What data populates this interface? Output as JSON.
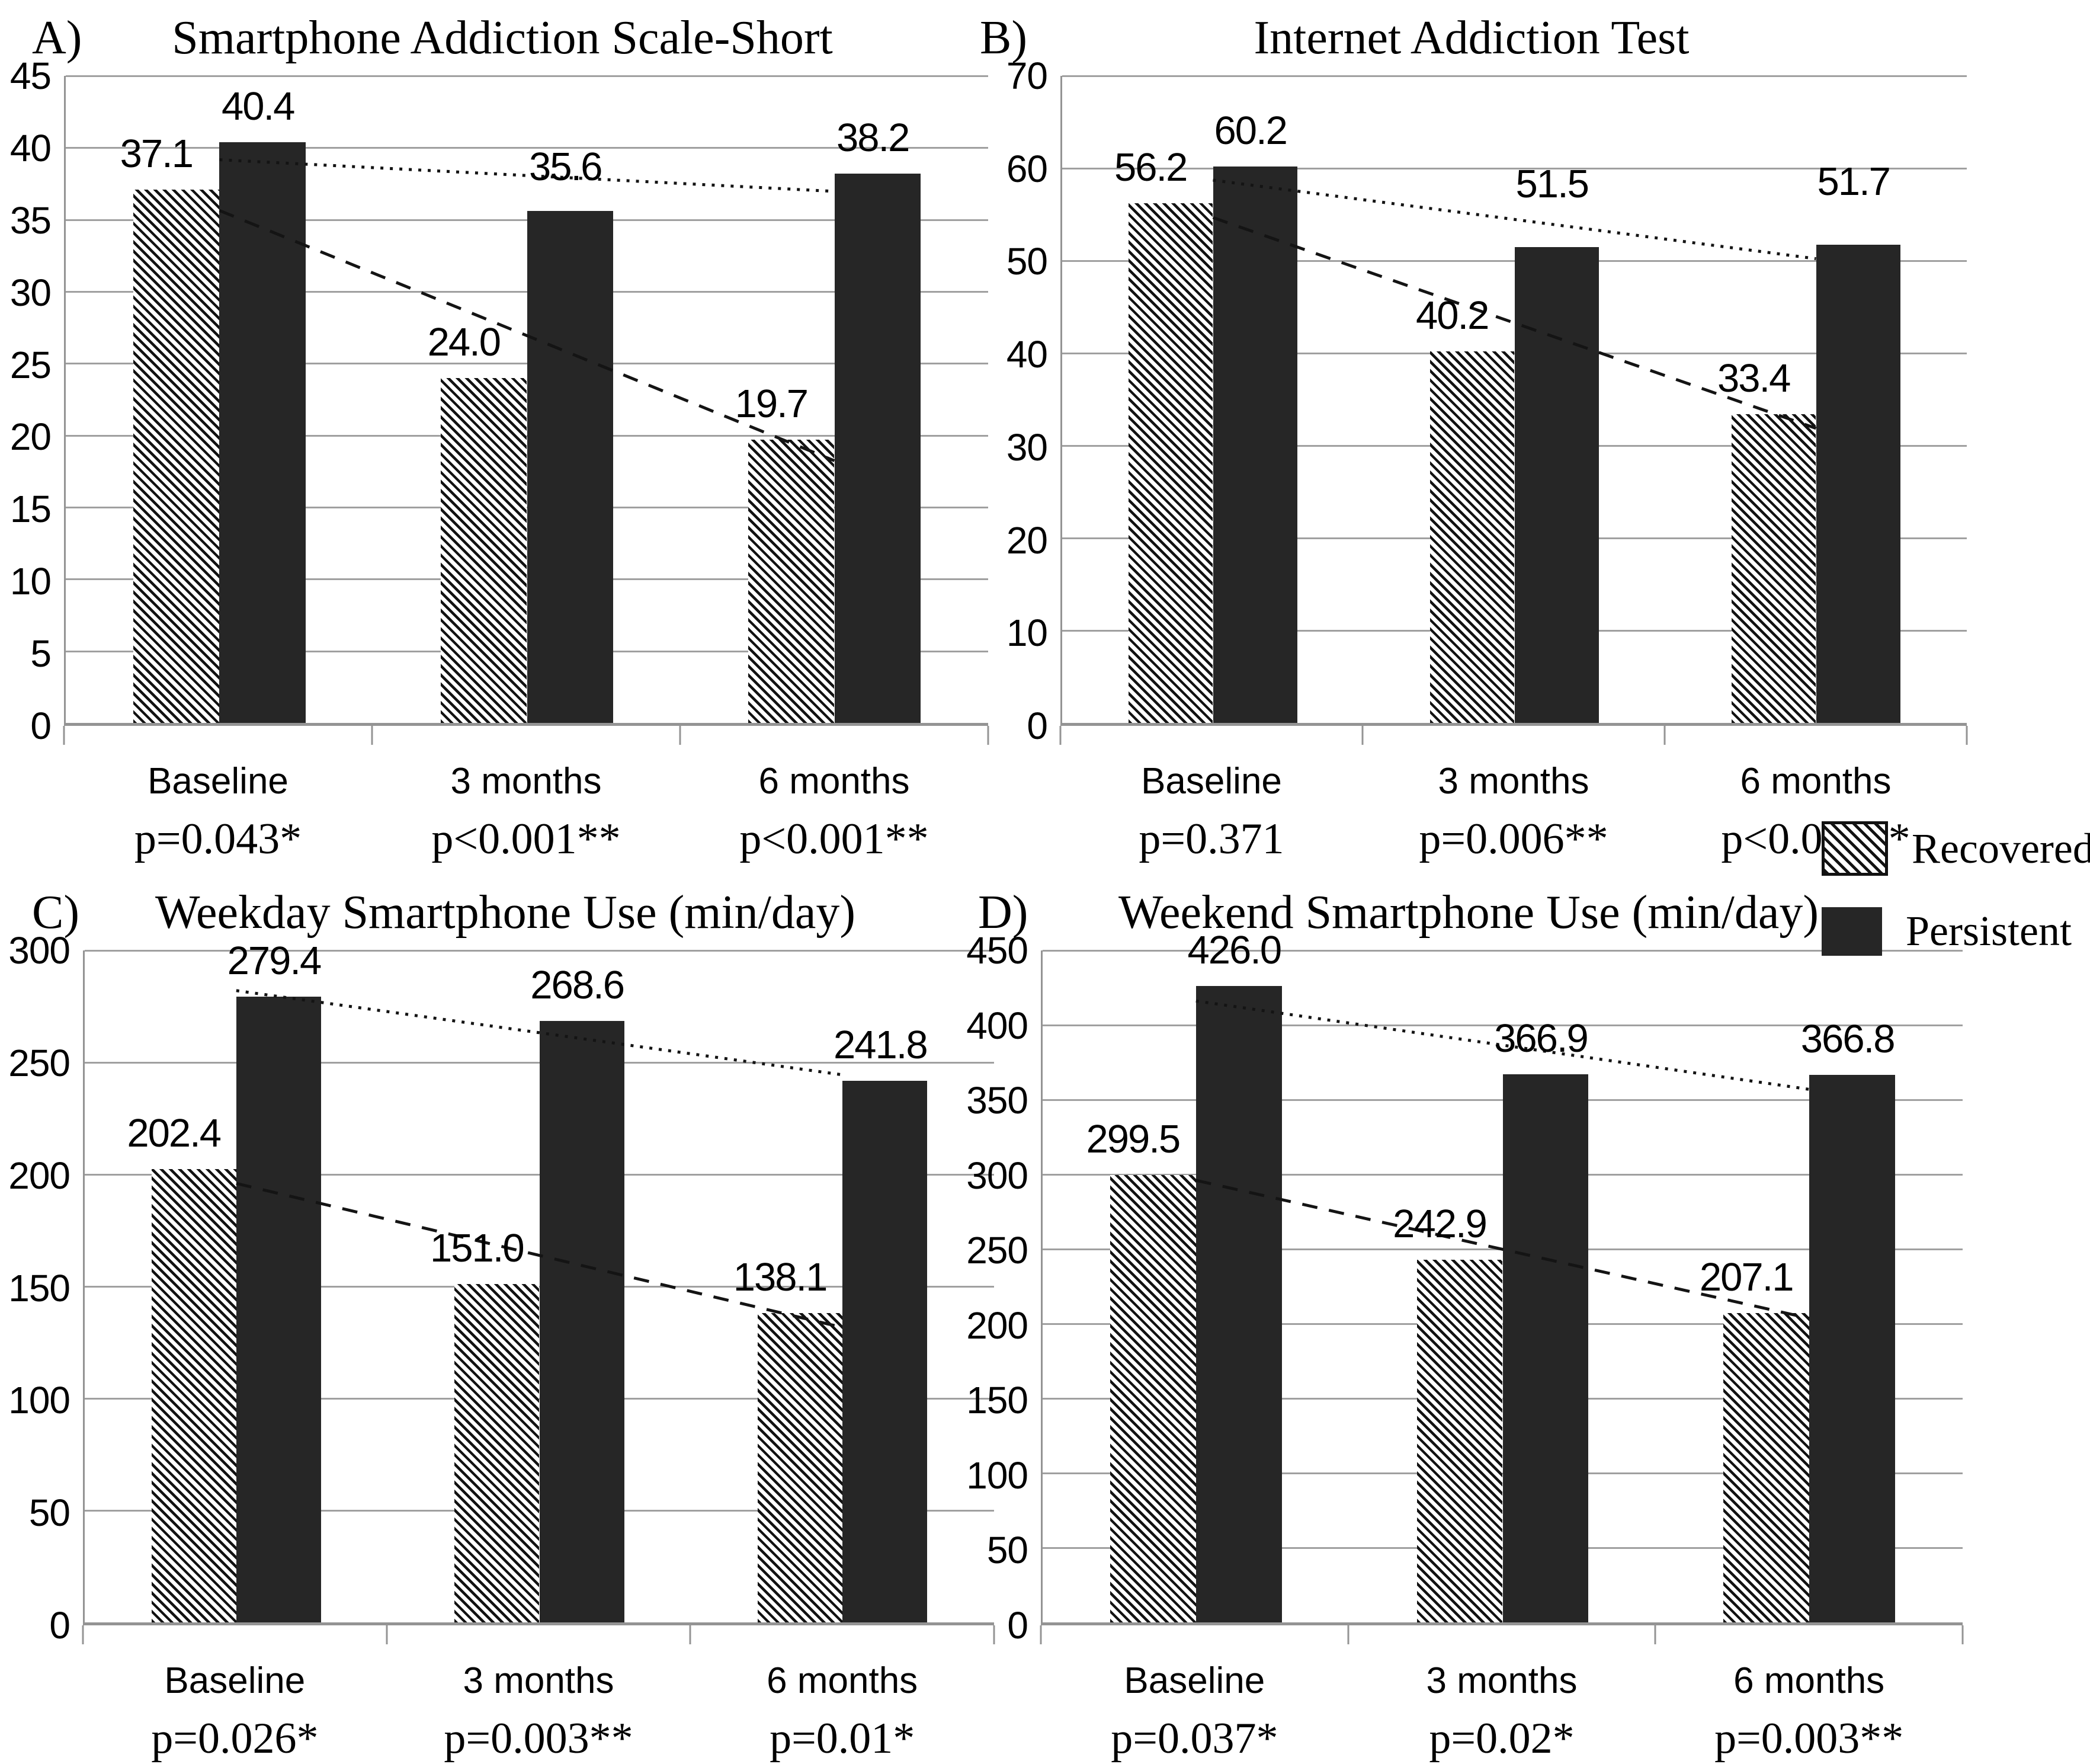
{
  "figure": {
    "background": "#ffffff"
  },
  "colors": {
    "bar_solid": "#262626",
    "hatch_stripe": "#121212",
    "grid": "#a0a0a0",
    "axis": "#949494",
    "trend": "#141414",
    "text": "#000000"
  },
  "legend": {
    "position": "right-middle",
    "items": [
      {
        "label": "Recovered",
        "swatch": "hatched-diagonal"
      },
      {
        "label": "Persistent",
        "swatch": "solid-dark"
      }
    ]
  },
  "chart_data": [
    {
      "id": "a",
      "type": "bar",
      "panel_letter": "A)",
      "title": "Smartphone Addiction Scale-Short",
      "categories": [
        "Baseline",
        "3 months",
        "6 months"
      ],
      "p_values": [
        "p=0.043*",
        "p<0.001**",
        "p<0.001**"
      ],
      "ylim": [
        0,
        45
      ],
      "ystep": 5,
      "yticks": [
        "45",
        "40",
        "35",
        "30",
        "25",
        "20",
        "15",
        "10",
        "5",
        "0"
      ],
      "grid": true,
      "series": [
        {
          "name": "Recovered",
          "style": "hatched",
          "values": [
            37.1,
            24.0,
            19.7
          ],
          "labels": [
            "37.1",
            "24.0",
            "19.7"
          ]
        },
        {
          "name": "Persistent",
          "style": "solid",
          "values": [
            40.4,
            35.6,
            38.2
          ],
          "labels": [
            "40.4",
            "35.6",
            "38.2"
          ]
        }
      ],
      "trendlines": "linear-fit-per-series",
      "label_extra_gap": {
        "Persistent": [
          0,
          14,
          0
        ]
      }
    },
    {
      "id": "b",
      "type": "bar",
      "panel_letter": "B)",
      "title": "Internet Addiction Test",
      "categories": [
        "Baseline",
        "3 months",
        "6 months"
      ],
      "p_values": [
        "p=0.371",
        "p=0.006**",
        "p<0.001**"
      ],
      "ylim": [
        0,
        70
      ],
      "ystep": 10,
      "yticks": [
        "70",
        "60",
        "50",
        "40",
        "30",
        "20",
        "10",
        "0"
      ],
      "grid": true,
      "series": [
        {
          "name": "Recovered",
          "style": "hatched",
          "values": [
            56.2,
            40.2,
            33.4
          ],
          "labels": [
            "56.2",
            "40.2",
            "33.4"
          ]
        },
        {
          "name": "Persistent",
          "style": "solid",
          "values": [
            60.2,
            51.5,
            51.7
          ],
          "labels": [
            "60.2",
            "51.5",
            "51.7"
          ]
        }
      ],
      "trendlines": "linear-fit-per-series",
      "label_extra_gap": {
        "Persistent": [
          0,
          46,
          46
        ]
      }
    },
    {
      "id": "c",
      "type": "bar",
      "panel_letter": "C)",
      "title": "Weekday Smartphone Use (min/day)",
      "categories": [
        "Baseline",
        "3 months",
        "6 months"
      ],
      "p_values": [
        "p=0.026*",
        "p=0.003**",
        "p=0.01*"
      ],
      "ylim": [
        0,
        300
      ],
      "ystep": 50,
      "yticks": [
        "300",
        "250",
        "200",
        "150",
        "100",
        "50",
        "0"
      ],
      "grid": true,
      "series": [
        {
          "name": "Recovered",
          "style": "hatched",
          "values": [
            202.4,
            151.0,
            138.1
          ],
          "labels": [
            "202.4",
            "151.0",
            "138.1"
          ]
        },
        {
          "name": "Persistent",
          "style": "solid",
          "values": [
            279.4,
            268.6,
            241.8
          ],
          "labels": [
            "279.4",
            "268.6",
            "241.8"
          ]
        }
      ],
      "trendlines": "linear-fit-per-series",
      "label_extra_gap": {}
    },
    {
      "id": "d",
      "type": "bar",
      "panel_letter": "D)",
      "title": "Weekend Smartphone Use (min/day)",
      "categories": [
        "Baseline",
        "3 months",
        "6 months"
      ],
      "p_values": [
        "p=0.037*",
        "p=0.02*",
        "p=0.003**"
      ],
      "ylim": [
        0,
        450
      ],
      "ystep": 50,
      "yticks": [
        "450",
        "400",
        "350",
        "300",
        "250",
        "200",
        "150",
        "100",
        "50",
        "0"
      ],
      "grid": true,
      "series": [
        {
          "name": "Recovered",
          "style": "hatched",
          "values": [
            299.5,
            242.9,
            207.1
          ],
          "labels": [
            "299.5",
            "242.9",
            "207.1"
          ]
        },
        {
          "name": "Persistent",
          "style": "solid",
          "values": [
            426.0,
            366.9,
            366.8
          ],
          "labels": [
            "426.0",
            "366.9",
            "366.8"
          ]
        }
      ],
      "trendlines": "linear-fit-per-series",
      "label_extra_gap": {}
    }
  ]
}
